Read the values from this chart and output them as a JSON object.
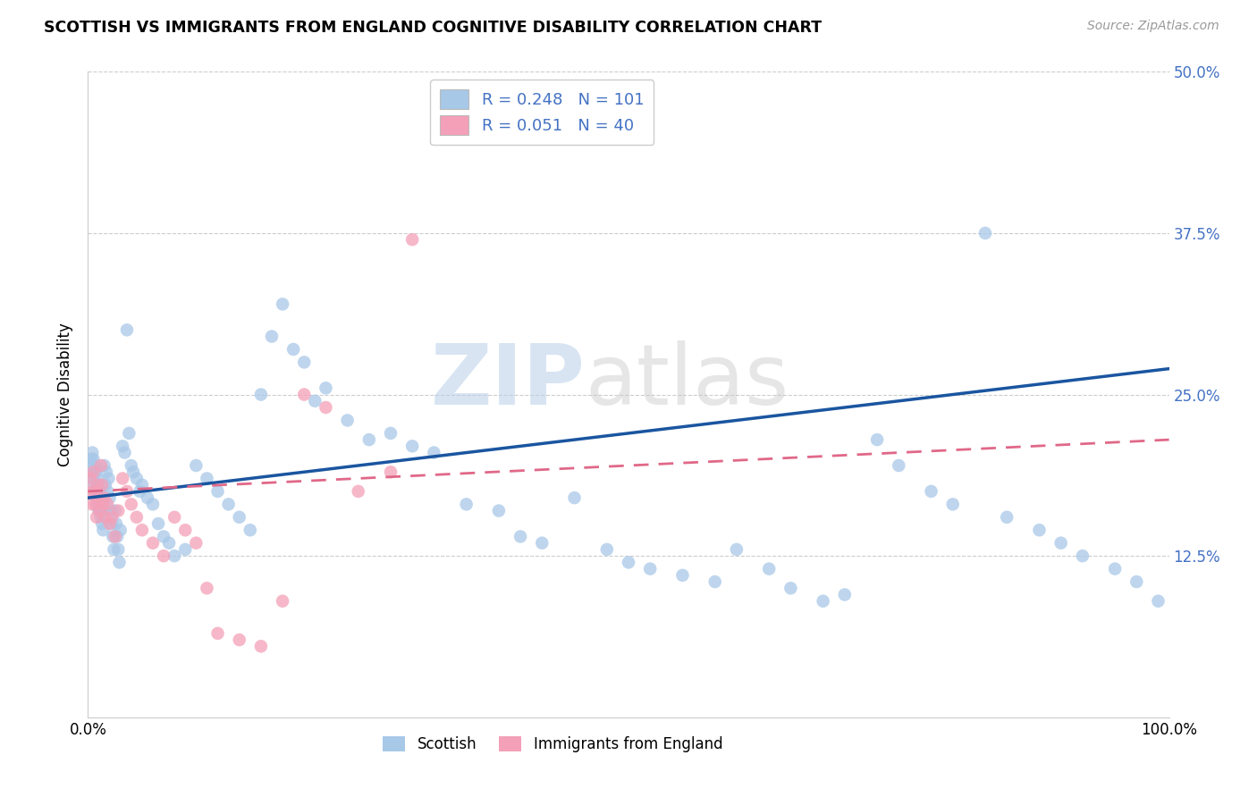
{
  "title": "SCOTTISH VS IMMIGRANTS FROM ENGLAND COGNITIVE DISABILITY CORRELATION CHART",
  "source": "Source: ZipAtlas.com",
  "ylabel": "Cognitive Disability",
  "scottish_color": "#a8c8e8",
  "england_color": "#f4a0b8",
  "trendline_scottish_color": "#1a55a0",
  "trendline_england_color": "#e06888",
  "xlim": [
    0.0,
    1.0
  ],
  "ylim": [
    0.0,
    0.5
  ],
  "scottish_x": [
    0.002,
    0.003,
    0.004,
    0.004,
    0.005,
    0.005,
    0.006,
    0.006,
    0.007,
    0.007,
    0.008,
    0.008,
    0.009,
    0.009,
    0.01,
    0.01,
    0.011,
    0.011,
    0.012,
    0.012,
    0.013,
    0.013,
    0.014,
    0.014,
    0.015,
    0.016,
    0.017,
    0.018,
    0.019,
    0.02,
    0.021,
    0.022,
    0.023,
    0.024,
    0.025,
    0.026,
    0.027,
    0.028,
    0.029,
    0.03,
    0.032,
    0.034,
    0.036,
    0.038,
    0.04,
    0.042,
    0.045,
    0.048,
    0.05,
    0.055,
    0.06,
    0.065,
    0.07,
    0.075,
    0.08,
    0.09,
    0.1,
    0.11,
    0.12,
    0.13,
    0.14,
    0.15,
    0.16,
    0.17,
    0.18,
    0.19,
    0.2,
    0.21,
    0.22,
    0.24,
    0.26,
    0.28,
    0.3,
    0.32,
    0.35,
    0.38,
    0.4,
    0.42,
    0.45,
    0.48,
    0.5,
    0.52,
    0.55,
    0.58,
    0.6,
    0.63,
    0.65,
    0.68,
    0.7,
    0.73,
    0.75,
    0.78,
    0.8,
    0.83,
    0.85,
    0.88,
    0.9,
    0.92,
    0.95,
    0.97,
    0.99
  ],
  "scottish_y": [
    0.195,
    0.2,
    0.19,
    0.205,
    0.185,
    0.2,
    0.18,
    0.195,
    0.175,
    0.19,
    0.17,
    0.185,
    0.165,
    0.18,
    0.16,
    0.175,
    0.16,
    0.175,
    0.155,
    0.17,
    0.15,
    0.165,
    0.145,
    0.16,
    0.195,
    0.18,
    0.19,
    0.175,
    0.185,
    0.17,
    0.16,
    0.15,
    0.14,
    0.13,
    0.16,
    0.15,
    0.14,
    0.13,
    0.12,
    0.145,
    0.21,
    0.205,
    0.3,
    0.22,
    0.195,
    0.19,
    0.185,
    0.175,
    0.18,
    0.17,
    0.165,
    0.15,
    0.14,
    0.135,
    0.125,
    0.13,
    0.195,
    0.185,
    0.175,
    0.165,
    0.155,
    0.145,
    0.25,
    0.295,
    0.32,
    0.285,
    0.275,
    0.245,
    0.255,
    0.23,
    0.215,
    0.22,
    0.21,
    0.205,
    0.165,
    0.16,
    0.14,
    0.135,
    0.17,
    0.13,
    0.12,
    0.115,
    0.11,
    0.105,
    0.13,
    0.115,
    0.1,
    0.09,
    0.095,
    0.215,
    0.195,
    0.175,
    0.165,
    0.375,
    0.155,
    0.145,
    0.135,
    0.125,
    0.115,
    0.105,
    0.09
  ],
  "england_x": [
    0.002,
    0.003,
    0.004,
    0.005,
    0.006,
    0.007,
    0.008,
    0.009,
    0.01,
    0.011,
    0.012,
    0.013,
    0.014,
    0.015,
    0.016,
    0.018,
    0.02,
    0.022,
    0.025,
    0.028,
    0.032,
    0.036,
    0.04,
    0.045,
    0.05,
    0.06,
    0.07,
    0.08,
    0.09,
    0.1,
    0.11,
    0.12,
    0.14,
    0.16,
    0.18,
    0.2,
    0.22,
    0.25,
    0.28,
    0.3
  ],
  "england_y": [
    0.185,
    0.175,
    0.165,
    0.19,
    0.175,
    0.165,
    0.155,
    0.18,
    0.17,
    0.16,
    0.195,
    0.18,
    0.165,
    0.17,
    0.155,
    0.165,
    0.15,
    0.155,
    0.14,
    0.16,
    0.185,
    0.175,
    0.165,
    0.155,
    0.145,
    0.135,
    0.125,
    0.155,
    0.145,
    0.135,
    0.1,
    0.065,
    0.06,
    0.055,
    0.09,
    0.25,
    0.24,
    0.175,
    0.19,
    0.37
  ],
  "england_trend_x0": 0.0,
  "england_trend_y0": 0.175,
  "england_trend_x1": 1.0,
  "england_trend_y1": 0.215,
  "scottish_trend_x0": 0.0,
  "scottish_trend_y0": 0.17,
  "scottish_trend_x1": 1.0,
  "scottish_trend_y1": 0.27
}
